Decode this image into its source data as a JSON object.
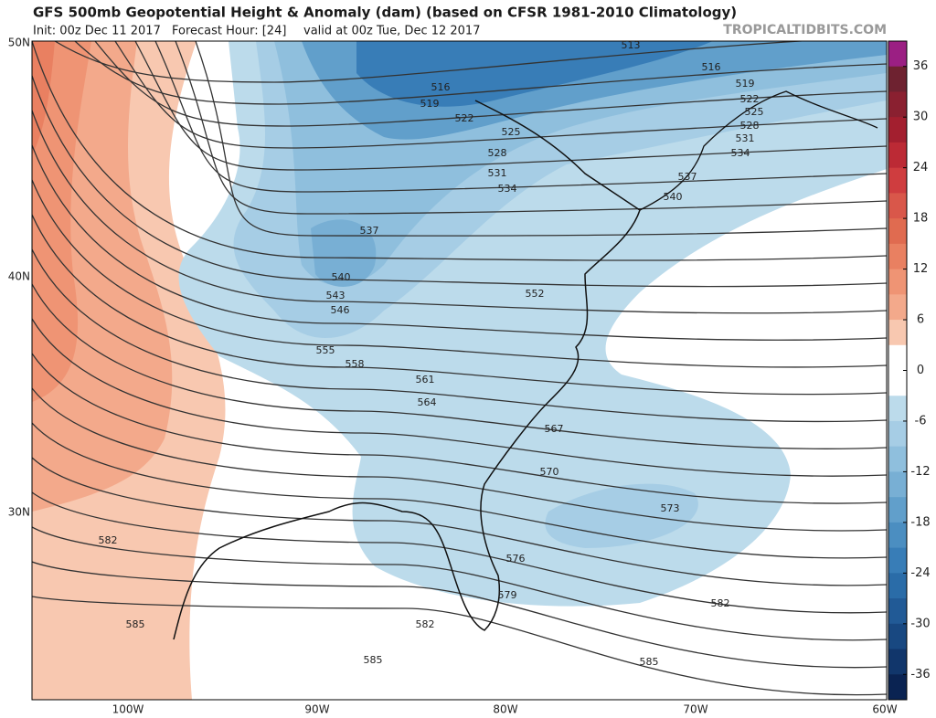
{
  "header": {
    "title": "GFS 500mb Geopotential Height & Anomaly (dam) (based on CFSR 1981-2010 Climatology)",
    "init": "Init: 00z Dec 11 2017",
    "forecast_hour": "Forecast Hour: [24]",
    "valid": "valid at 00z Tue, Dec 12 2017",
    "source": "TROPICALTIDBITS.COM"
  },
  "latitude_labels": [
    "50N",
    "40N",
    "30N"
  ],
  "longitude_labels": [
    "100W",
    "90W",
    "80W",
    "70W",
    "60W"
  ],
  "contour_labels": [
    "513",
    "516",
    "516",
    "519",
    "519",
    "522",
    "522",
    "525",
    "525",
    "528",
    "528",
    "531",
    "531",
    "534",
    "534",
    "537",
    "537",
    "540",
    "540",
    "543",
    "546",
    "552",
    "555",
    "558",
    "561",
    "564",
    "567",
    "570",
    "573",
    "576",
    "579",
    "582",
    "582",
    "582",
    "585",
    "585",
    "585"
  ],
  "colorbar": {
    "ticks": [
      36,
      30,
      24,
      18,
      12,
      6,
      0,
      -6,
      -12,
      -18,
      -24,
      -30,
      -36
    ],
    "range": [
      -39,
      39
    ],
    "colors": [
      "#9b1f83",
      "#6e2230",
      "#8a2030",
      "#a31f2f",
      "#bc2a35",
      "#cf3d3f",
      "#d9574a",
      "#e06b50",
      "#e98061",
      "#ef9474",
      "#f3a98b",
      "#f8c8b0",
      "#ffffff",
      "#ffffff",
      "#bcdbeb",
      "#a6cde5",
      "#8fbfdd",
      "#78afd4",
      "#619fcb",
      "#4b8ec1",
      "#387db7",
      "#2a6ca8",
      "#215a96",
      "#184881",
      "#11366b",
      "#0a2352"
    ]
  }
}
